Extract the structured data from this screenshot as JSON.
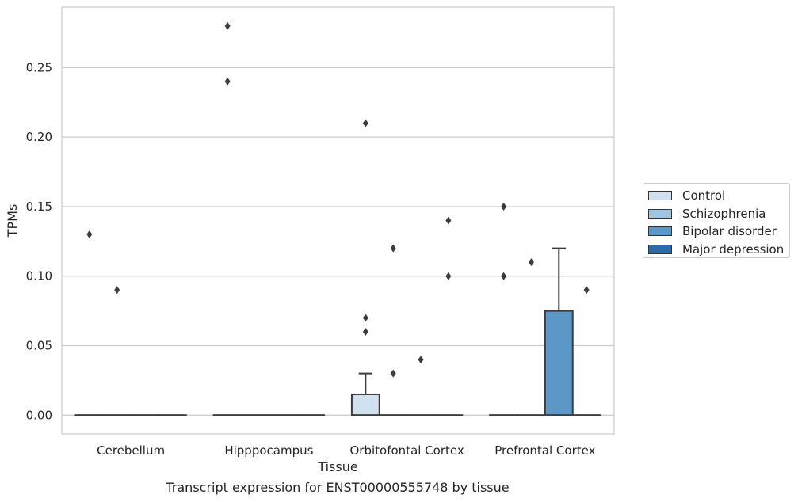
{
  "chart_data": {
    "type": "box",
    "xlabel": "Tissue",
    "ylabel": "TPMs",
    "caption": "Transcript expression for ENST00000555748 by tissue",
    "ylim": [
      -0.0135,
      0.2935
    ],
    "yticks": [
      "0.00",
      "0.05",
      "0.10",
      "0.15",
      "0.20",
      "0.25"
    ],
    "ytick_values": [
      0,
      0.05,
      0.1,
      0.15,
      0.2,
      0.25
    ],
    "grid": "horizontal",
    "legend_position": "right",
    "categories": [
      "Cerebellum",
      "Hipppocampus",
      "Orbitofontal Cortex",
      "Prefrontal Cortex"
    ],
    "series": [
      {
        "name": "Control",
        "color": "#d1e1f0",
        "boxes": [
          {
            "q1": 0,
            "median": 0,
            "q3": 0,
            "whisker_low": 0,
            "whisker_high": 0,
            "outliers": [
              0.13
            ]
          },
          {
            "q1": 0,
            "median": 0,
            "q3": 0,
            "whisker_low": 0,
            "whisker_high": 0,
            "outliers": [
              0.28,
              0.24
            ]
          },
          {
            "q1": 0,
            "median": 0,
            "q3": 0.015,
            "whisker_low": 0,
            "whisker_high": 0.03,
            "outliers": [
              0.21,
              0.07,
              0.06
            ]
          },
          {
            "q1": 0,
            "median": 0,
            "q3": 0,
            "whisker_low": 0,
            "whisker_high": 0,
            "outliers": [
              0.15,
              0.1
            ]
          }
        ]
      },
      {
        "name": "Schizophrenia",
        "color": "#9fc5e0",
        "boxes": [
          {
            "q1": 0,
            "median": 0,
            "q3": 0,
            "whisker_low": 0,
            "whisker_high": 0,
            "outliers": [
              0.09
            ]
          },
          {
            "q1": 0,
            "median": 0,
            "q3": 0,
            "whisker_low": 0,
            "whisker_high": 0,
            "outliers": []
          },
          {
            "q1": 0,
            "median": 0,
            "q3": 0,
            "whisker_low": 0,
            "whisker_high": 0,
            "outliers": [
              0.12,
              0.03
            ]
          },
          {
            "q1": 0,
            "median": 0,
            "q3": 0,
            "whisker_low": 0,
            "whisker_high": 0,
            "outliers": [
              0.11
            ]
          }
        ]
      },
      {
        "name": "Bipolar disorder",
        "color": "#5c98c7",
        "boxes": [
          {
            "q1": 0,
            "median": 0,
            "q3": 0,
            "whisker_low": 0,
            "whisker_high": 0,
            "outliers": []
          },
          {
            "q1": 0,
            "median": 0,
            "q3": 0,
            "whisker_low": 0,
            "whisker_high": 0,
            "outliers": []
          },
          {
            "q1": 0,
            "median": 0,
            "q3": 0,
            "whisker_low": 0,
            "whisker_high": 0,
            "outliers": [
              0.04
            ]
          },
          {
            "q1": 0,
            "median": 0,
            "q3": 0.075,
            "whisker_low": 0,
            "whisker_high": 0.12,
            "outliers": []
          }
        ]
      },
      {
        "name": "Major depression",
        "color": "#2b6ba8",
        "boxes": [
          {
            "q1": 0,
            "median": 0,
            "q3": 0,
            "whisker_low": 0,
            "whisker_high": 0,
            "outliers": []
          },
          {
            "q1": 0,
            "median": 0,
            "q3": 0,
            "whisker_low": 0,
            "whisker_high": 0,
            "outliers": []
          },
          {
            "q1": 0,
            "median": 0,
            "q3": 0,
            "whisker_low": 0,
            "whisker_high": 0,
            "outliers": [
              0.14,
              0.1
            ]
          },
          {
            "q1": 0,
            "median": 0,
            "q3": 0,
            "whisker_low": 0,
            "whisker_high": 0,
            "outliers": [
              0.09
            ]
          }
        ]
      }
    ]
  }
}
